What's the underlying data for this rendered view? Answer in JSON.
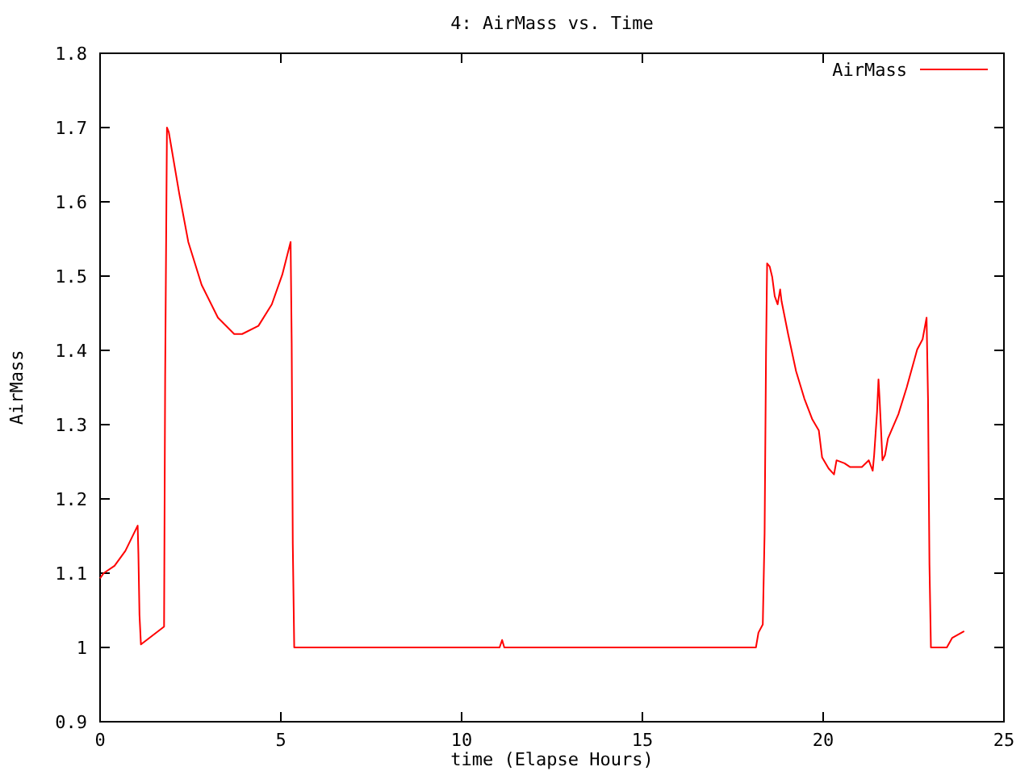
{
  "chart_data": {
    "type": "line",
    "title": "4: AirMass vs. Time",
    "xlabel": "time (Elapse Hours)",
    "ylabel": "AirMass",
    "xlim": [
      0,
      25
    ],
    "xticks": [
      0,
      5,
      10,
      15,
      20,
      25
    ],
    "ylim": [
      0.9,
      1.8
    ],
    "yticks": [
      0.9,
      1,
      1.1,
      1.2,
      1.3,
      1.4,
      1.5,
      1.6,
      1.7,
      1.8
    ],
    "grid": false,
    "legend": "top right",
    "line_style": "solid",
    "marker": "none",
    "series": [
      {
        "name": "AirMass",
        "color": "#ff0000",
        "x": [
          0,
          0.1,
          0.4,
          0.7,
          1.04,
          1.06,
          1.09,
          1.13,
          1.77,
          1.8,
          1.85,
          1.9,
          2.19,
          2.44,
          2.81,
          3.26,
          3.71,
          3.93,
          4.38,
          4.75,
          5.04,
          5.27,
          5.3,
          5.33,
          5.37,
          11.05,
          11.12,
          11.18,
          18.14,
          18.21,
          18.33,
          18.38,
          18.42,
          18.45,
          18.52,
          18.59,
          18.66,
          18.74,
          18.81,
          18.85,
          19.03,
          19.25,
          19.48,
          19.7,
          19.88,
          19.97,
          20.15,
          20.3,
          20.37,
          20.59,
          20.74,
          21.07,
          21.26,
          21.37,
          21.41,
          21.49,
          21.53,
          21.56,
          21.64,
          21.71,
          21.79,
          22.08,
          22.31,
          22.6,
          22.75,
          22.86,
          22.9,
          22.94,
          22.98,
          23.42,
          23.57,
          23.9
        ],
        "values": [
          1.093,
          1.1,
          1.11,
          1.13,
          1.164,
          1.126,
          1.044,
          1.004,
          1.028,
          1.365,
          1.7,
          1.694,
          1.611,
          1.546,
          1.488,
          1.444,
          1.422,
          1.422,
          1.433,
          1.462,
          1.502,
          1.546,
          1.409,
          1.14,
          1.0,
          1.0,
          1.01,
          1.0,
          1.0,
          1.02,
          1.031,
          1.154,
          1.398,
          1.517,
          1.513,
          1.499,
          1.473,
          1.462,
          1.482,
          1.466,
          1.422,
          1.372,
          1.335,
          1.307,
          1.292,
          1.256,
          1.241,
          1.233,
          1.252,
          1.248,
          1.243,
          1.243,
          1.252,
          1.238,
          1.259,
          1.317,
          1.361,
          1.335,
          1.252,
          1.259,
          1.281,
          1.314,
          1.35,
          1.401,
          1.415,
          1.444,
          1.335,
          1.111,
          1.0,
          1.0,
          1.013,
          1.022
        ]
      }
    ]
  }
}
